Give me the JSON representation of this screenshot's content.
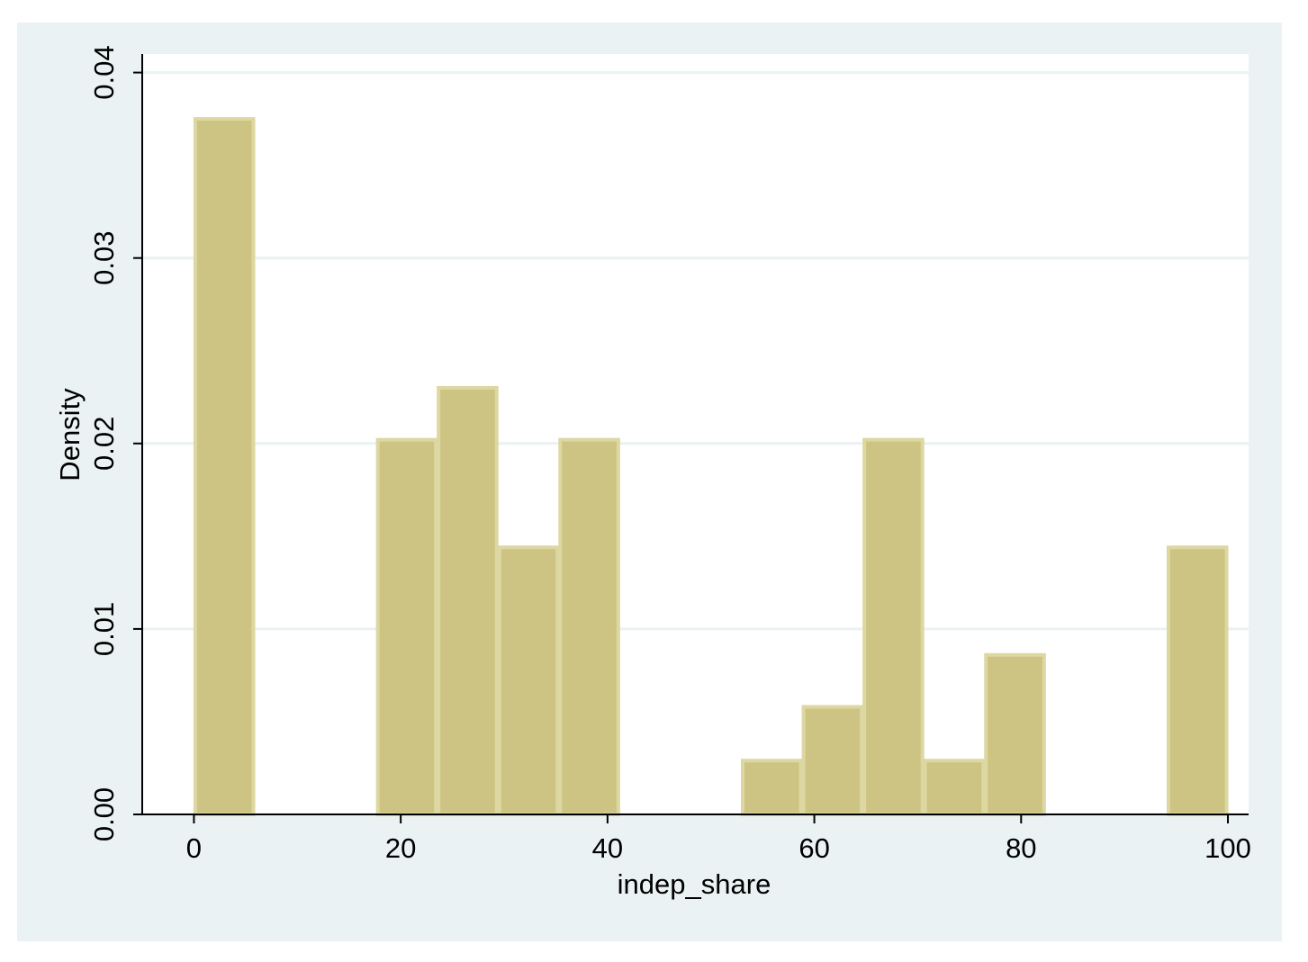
{
  "chart_data": {
    "type": "histogram",
    "bins": [
      0,
      5.882,
      11.765,
      17.647,
      23.529,
      29.412,
      35.294,
      41.176,
      47.059,
      52.941,
      58.824,
      64.706,
      70.588,
      76.471,
      82.353,
      88.235,
      94.118,
      100
    ],
    "values": [
      0.0375,
      0,
      0,
      0.0202,
      0.023,
      0.0144,
      0.0202,
      0,
      0,
      0.0029,
      0.0058,
      0.0202,
      0.0029,
      0.0086,
      0,
      0,
      0.0144
    ],
    "color": "#cdc382",
    "xlabel": "indep_share",
    "ylabel": "Density",
    "xlim": [
      -5,
      102
    ],
    "ylim": [
      0,
      0.041
    ],
    "xticks": [
      0,
      20,
      40,
      60,
      80,
      100
    ],
    "yticks": [
      {
        "value": 0,
        "label": "0.00"
      },
      {
        "value": 0.01,
        "label": "0.01"
      },
      {
        "value": 0.02,
        "label": "0.02"
      },
      {
        "value": 0.03,
        "label": "0.03"
      },
      {
        "value": 0.04,
        "label": "0.04"
      }
    ],
    "grid": true
  }
}
